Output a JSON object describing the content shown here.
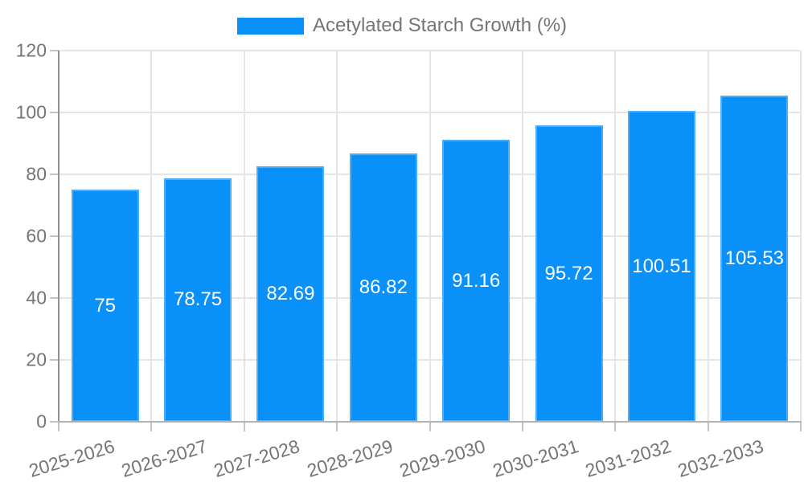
{
  "chart_data": {
    "type": "bar",
    "title": "",
    "legend": {
      "label": "Acetylated Starch Growth (%)",
      "position": "top"
    },
    "categories": [
      "2025-2026",
      "2026-2027",
      "2027-2028",
      "2028-2029",
      "2029-2030",
      "2030-2031",
      "2031-2032",
      "2032-2033"
    ],
    "series": [
      {
        "name": "Acetylated Starch Growth (%)",
        "values": [
          75,
          78.75,
          82.69,
          86.82,
          91.16,
          95.72,
          100.51,
          105.53
        ],
        "value_labels": [
          "75",
          "78.75",
          "82.69",
          "86.82",
          "91.16",
          "95.72",
          "100.51",
          "105.53"
        ]
      }
    ],
    "xlabel": "",
    "ylabel": "",
    "ylim": [
      0,
      120
    ],
    "yticks": [
      0,
      20,
      40,
      60,
      80,
      100,
      120
    ],
    "grid": true,
    "x_label_rotation_deg": -17,
    "colors": {
      "bar_fill": "#0990f9",
      "value_label_text": "#ffffff",
      "axis_text": "#757575",
      "gridline": "#e5e5e5",
      "axis_line": "#909090",
      "baseline": "#b2b2b2",
      "tick": "#c4c4c4",
      "background": "#ffffff"
    }
  }
}
